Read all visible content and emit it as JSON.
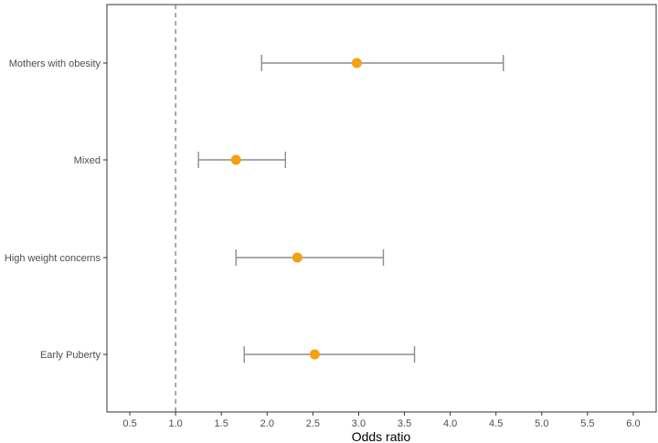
{
  "chart_data": {
    "type": "scatter",
    "xlabel": "Odds ratio",
    "ylabel": "",
    "xlim": [
      0.25,
      6.25
    ],
    "x_ticks": [
      "0.5",
      "1.0",
      "1.5",
      "2.0",
      "2.5",
      "3.0",
      "3.5",
      "4.0",
      "4.5",
      "5.0",
      "5.5",
      "6.0"
    ],
    "reference_line": 1.0,
    "grid": false,
    "categories": [
      "Mothers with obesity",
      "Mixed",
      "High weight concerns",
      "Early Puberty"
    ],
    "estimates": [
      2.98,
      1.66,
      2.33,
      2.52
    ],
    "ci_lower": [
      1.94,
      1.25,
      1.66,
      1.75
    ],
    "ci_upper": [
      4.58,
      2.2,
      3.27,
      3.61
    ],
    "colors": {
      "point": "#F5A010",
      "errorbar": "#8c8c8c",
      "reference": "#555555",
      "axis": "#333333"
    }
  }
}
